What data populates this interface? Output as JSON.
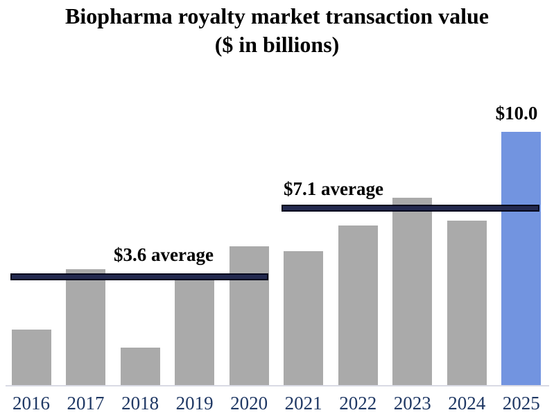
{
  "title": {
    "line1": "Biopharma royalty market transaction value",
    "line2": "($ in billions)"
  },
  "chart_data": {
    "type": "bar",
    "title": "Biopharma royalty market transaction value ($ in billions)",
    "categories": [
      "2016",
      "2017",
      "2018",
      "2019",
      "2020",
      "2021",
      "2022",
      "2023",
      "2024",
      "2025"
    ],
    "values": [
      2.2,
      4.6,
      1.5,
      4.2,
      5.5,
      5.3,
      6.3,
      7.4,
      6.5,
      10.0
    ],
    "unit": "USD billions",
    "ylim": [
      0,
      10.5
    ],
    "grid": false,
    "legend": "none",
    "highlight_year": "2025",
    "bar_label": {
      "year": "2025",
      "text": "$10.0"
    },
    "average_lines": [
      {
        "label": "$3.6 average",
        "value": 3.6,
        "span_years": "2016-2020"
      },
      {
        "label": "$7.1 average",
        "value": 7.1,
        "span_years": "2021-2025"
      }
    ],
    "colors": {
      "bar": "#AAAAAA",
      "highlight_bar": "#7294E0",
      "average_line_fill": "#23294F",
      "average_line_border": "#06081C",
      "axis_line": "#D9DAE4",
      "year_label": "#1F3864",
      "annotation_text": "#000000",
      "title_text": "#000000"
    }
  }
}
